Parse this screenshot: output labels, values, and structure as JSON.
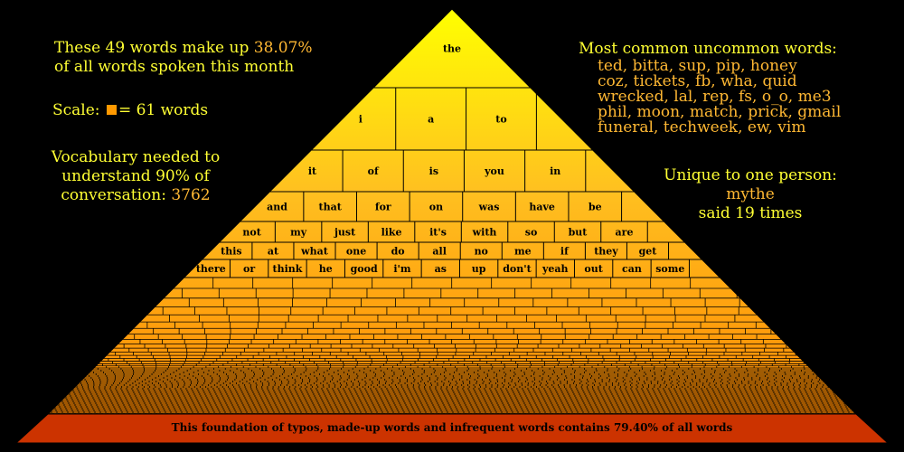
{
  "left_panel": {
    "line1_prefix": "These 49 words make up ",
    "percent": "38.07%",
    "line2": "of all words spoken this month",
    "scale_label": "Scale:",
    "scale_text": "= 61 words",
    "vocab_line1": "Vocabulary needed to",
    "vocab_line2": "understand 90% of",
    "vocab_line3_prefix": "conversation: ",
    "vocab_value": "3762"
  },
  "right_panel": {
    "common_title": "Most common uncommon words:",
    "common_lines": [
      "ted, bitta, sup, pip, honey",
      "coz, tickets, fb, wha, quid",
      "wrecked, lal, rep, fs, o_o, me3",
      "phil, moon, match, prick, gmail",
      "funeral, techweek, ew, vim"
    ],
    "unique_title": "Unique to one person:",
    "unique_word": "mythe",
    "unique_count": "said 19 times"
  },
  "chart_data": {
    "type": "pyramid",
    "tiers": [
      [
        "the"
      ],
      [
        "i",
        "a",
        "to"
      ],
      [
        "it",
        "of",
        "is",
        "you",
        "in"
      ],
      [
        "and",
        "that",
        "for",
        "on",
        "was",
        "have",
        "be"
      ],
      [
        "not",
        "my",
        "just",
        "like",
        "it's",
        "with",
        "so",
        "but",
        "are"
      ],
      [
        "this",
        "at",
        "what",
        "one",
        "do",
        "all",
        "no",
        "me",
        "if",
        "they",
        "get"
      ],
      [
        "there",
        "or",
        "think",
        "he",
        "good",
        "i'm",
        "as",
        "up",
        "don't",
        "yeah",
        "out",
        "can",
        "some"
      ]
    ],
    "words_top_49_share_percent": 38.07,
    "scale_words_per_unit": 61,
    "vocab_for_90_percent": 3762,
    "foundation_text": "This foundation of typos, made-up words and infrequent words contains 79.40% of all words",
    "foundation_share_percent": 79.4,
    "colors": {
      "top": "#ffff00",
      "bottom": "#ff8c00",
      "foundation": "#cc3300",
      "outline": "#000000",
      "title_text": "#ffff33",
      "highlight_text": "#ffb833"
    }
  }
}
